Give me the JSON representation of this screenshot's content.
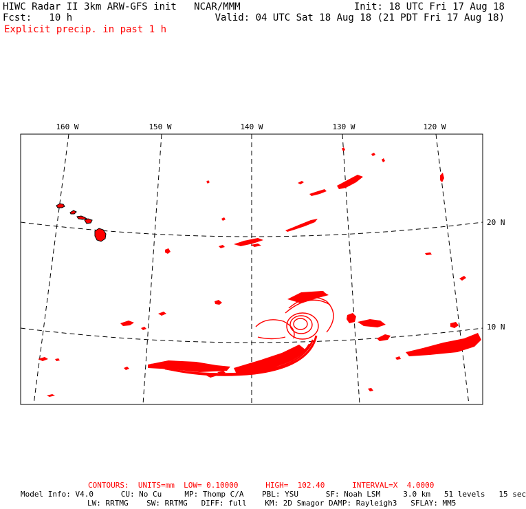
{
  "header": {
    "title_left": "HIWC Radar II 3km ARW-GFS init   NCAR/MMM",
    "init": "Init: 18 UTC Fri 17 Aug 18",
    "fcst_label": "Fcst:   10 h",
    "valid": "Valid: 04 UTC Sat 18 Aug 18 (21 PDT Fri 17 Aug 18)",
    "field": "Explicit precip. in past 1 h"
  },
  "map": {
    "lon_labels": [
      "160 W",
      "150 W",
      "140 W",
      "130 W",
      "120 W"
    ],
    "lat_labels": [
      "20 N",
      "10 N"
    ],
    "colors": {
      "frame": "#000000",
      "grid": "#000000",
      "precip": "#ff0000",
      "coast": "#000000"
    }
  },
  "footer": {
    "contours": "CONTOURS:  UNITS=mm  LOW= 0.10000      HIGH=  102.40      INTERVAL=X  4.0000",
    "model_line1": "Model Info: V4.0      CU: No Cu     MP: Thomp C/A    PBL: YSU      SF: Noah LSM     3.0 km   51 levels   15 sec",
    "model_line2": "LW: RRTMG    SW: RRTMG   DIFF: full    KM: 2D Smagor DAMP: Rayleigh3   SFLAY: MM5"
  }
}
